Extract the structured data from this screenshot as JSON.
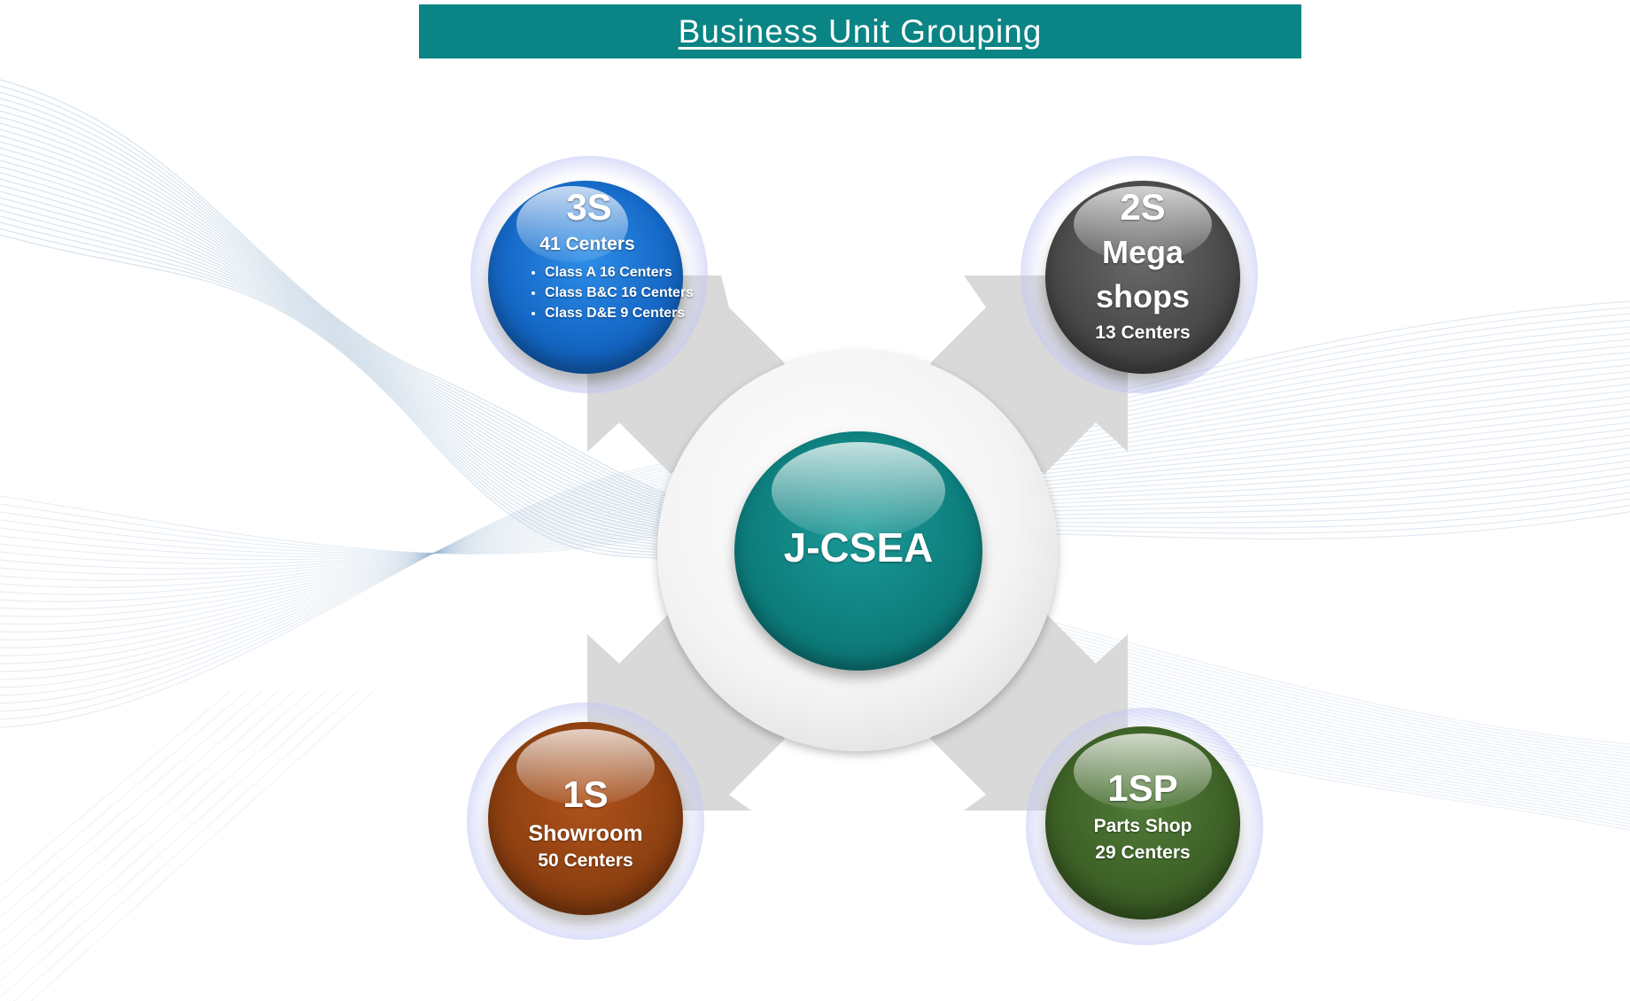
{
  "title": "Business Unit Grouping",
  "center": {
    "label": "J-CSEA"
  },
  "nodes": {
    "s3": {
      "code": "3S",
      "centers": "41 Centers",
      "classes": [
        "Class A 16 Centers",
        "Class B&C 16 Centers",
        "Class D&E 9 Centers"
      ]
    },
    "s2": {
      "code": "2S",
      "line1": "Mega",
      "line2": "shops",
      "centers": "13 Centers"
    },
    "s1": {
      "code": "1S",
      "subtitle": "Showroom",
      "centers": "50 Centers"
    },
    "s1p": {
      "code": "1SP",
      "subtitle": "Parts Shop",
      "centers": "29 Centers"
    }
  },
  "colors": {
    "title_bar": "#0a8484",
    "center": "#0e7f7e",
    "s3": "#1568c6",
    "s2": "#4a4a4a",
    "s1": "#8f4111",
    "s1p": "#3e6227",
    "arrows": "#d9d9d9",
    "waves": "#9cb6d2"
  }
}
